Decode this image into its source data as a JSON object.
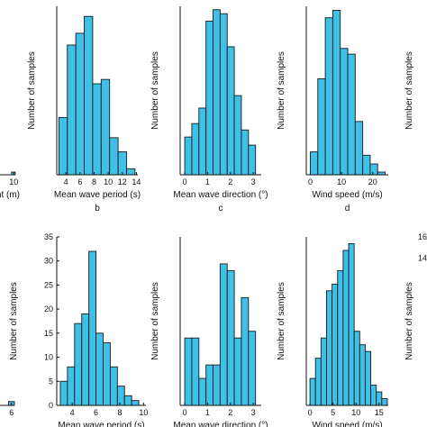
{
  "colors": {
    "bar_fill": "#3FC0E6",
    "bar_edge": "#1a1a1a",
    "axis": "#111111"
  },
  "chart_data": [
    {
      "type": "bar",
      "panel_letter": "",
      "xlabel": "ight (m)",
      "ylabel": "",
      "xlim": [
        0,
        10.5
      ],
      "ylim": [
        0,
        500
      ],
      "xticks": [
        {
          "value": 10,
          "label": "10"
        }
      ],
      "yticks": [],
      "bins": [
        {
          "x0": 9.3,
          "x1": 10.5,
          "value": 8
        }
      ]
    },
    {
      "type": "bar",
      "panel_letter": "b",
      "xlabel": "Mean wave period (s)",
      "ylabel": "Number of samples",
      "xlim": [
        2.7,
        14.2
      ],
      "ylim": [
        0,
        500
      ],
      "xticks": [
        {
          "value": 4,
          "label": "4"
        },
        {
          "value": 6,
          "label": "6"
        },
        {
          "value": 8,
          "label": "8"
        },
        {
          "value": 10,
          "label": "10"
        },
        {
          "value": 12,
          "label": "12"
        },
        {
          "value": 14,
          "label": "14"
        }
      ],
      "yticks": [
        {
          "value": 0,
          "label": ""
        }
      ],
      "bins": [
        {
          "x0": 3.0,
          "x1": 4.2,
          "value": 170
        },
        {
          "x0": 4.2,
          "x1": 5.4,
          "value": 385
        },
        {
          "x0": 5.4,
          "x1": 6.6,
          "value": 420
        },
        {
          "x0": 6.6,
          "x1": 7.8,
          "value": 470
        },
        {
          "x0": 7.8,
          "x1": 9.0,
          "value": 270
        },
        {
          "x0": 9.0,
          "x1": 10.2,
          "value": 283
        },
        {
          "x0": 10.2,
          "x1": 11.4,
          "value": 110
        },
        {
          "x0": 11.4,
          "x1": 12.6,
          "value": 68
        },
        {
          "x0": 12.6,
          "x1": 13.8,
          "value": 18
        }
      ]
    },
    {
      "type": "bar",
      "panel_letter": "c",
      "xlabel": "Mean wave direction (°)",
      "ylabel": "Number of samples",
      "xlim": [
        -0.2,
        3.35
      ],
      "ylim": [
        0,
        500
      ],
      "xticks": [
        {
          "value": 0,
          "label": "0"
        },
        {
          "value": 1,
          "label": "1"
        },
        {
          "value": 2,
          "label": "2"
        },
        {
          "value": 3,
          "label": "3"
        }
      ],
      "yticks": [
        {
          "value": 0,
          "label": ""
        }
      ],
      "bins": [
        {
          "x0": 0.0,
          "x1": 0.31,
          "value": 112
        },
        {
          "x0": 0.31,
          "x1": 0.62,
          "value": 152
        },
        {
          "x0": 0.62,
          "x1": 0.93,
          "value": 198
        },
        {
          "x0": 0.93,
          "x1": 1.24,
          "value": 456
        },
        {
          "x0": 1.24,
          "x1": 1.55,
          "value": 490
        },
        {
          "x0": 1.55,
          "x1": 1.86,
          "value": 478
        },
        {
          "x0": 1.86,
          "x1": 2.17,
          "value": 380
        },
        {
          "x0": 2.17,
          "x1": 2.48,
          "value": 235
        },
        {
          "x0": 2.48,
          "x1": 2.79,
          "value": 133
        },
        {
          "x0": 2.79,
          "x1": 3.1,
          "value": 88
        }
      ]
    },
    {
      "type": "bar",
      "panel_letter": "d",
      "xlabel": "Wind speed (m/s)",
      "ylabel": "Number of samples",
      "xlim": [
        -1.3,
        25
      ],
      "ylim": [
        0,
        500
      ],
      "xticks": [
        {
          "value": 0,
          "label": "0"
        },
        {
          "value": 10,
          "label": "10"
        },
        {
          "value": 20,
          "label": "20"
        }
      ],
      "yticks": [
        {
          "value": 0,
          "label": ""
        }
      ],
      "bins": [
        {
          "x0": 0.0,
          "x1": 2.4,
          "value": 68
        },
        {
          "x0": 2.4,
          "x1": 4.8,
          "value": 285
        },
        {
          "x0": 4.8,
          "x1": 7.2,
          "value": 466
        },
        {
          "x0": 7.2,
          "x1": 9.6,
          "value": 488
        },
        {
          "x0": 9.6,
          "x1": 12.0,
          "value": 375
        },
        {
          "x0": 12.0,
          "x1": 14.4,
          "value": 358
        },
        {
          "x0": 14.4,
          "x1": 16.8,
          "value": 158
        },
        {
          "x0": 16.8,
          "x1": 19.2,
          "value": 58
        },
        {
          "x0": 19.2,
          "x1": 21.6,
          "value": 32
        },
        {
          "x0": 21.6,
          "x1": 24.0,
          "value": 8
        }
      ]
    },
    {
      "type": "bar",
      "panel_letter": "",
      "xlabel": "",
      "ylabel": "",
      "xlim": [
        0,
        6.6
      ],
      "ylim": [
        0,
        35
      ],
      "xticks": [
        {
          "value": 6,
          "label": "6"
        }
      ],
      "yticks": [],
      "bins": [
        {
          "x0": 5.4,
          "x1": 6.6,
          "value": 0.8
        }
      ]
    },
    {
      "type": "bar",
      "panel_letter": "",
      "xlabel": "Mean wave period (s)",
      "ylabel": "Number of samples",
      "xlim": [
        2.7,
        10.2
      ],
      "ylim": [
        0,
        35
      ],
      "xticks": [
        {
          "value": 4,
          "label": "4"
        },
        {
          "value": 6,
          "label": "6"
        },
        {
          "value": 8,
          "label": "8"
        },
        {
          "value": 10,
          "label": "10"
        }
      ],
      "yticks": [
        {
          "value": 0,
          "label": "0"
        },
        {
          "value": 5,
          "label": "5"
        },
        {
          "value": 10,
          "label": "10"
        },
        {
          "value": 15,
          "label": "15"
        },
        {
          "value": 20,
          "label": "20"
        },
        {
          "value": 25,
          "label": "25"
        },
        {
          "value": 30,
          "label": "30"
        },
        {
          "value": 35,
          "label": "35"
        }
      ],
      "bins": [
        {
          "x0": 3.0,
          "x1": 3.6,
          "value": 5
        },
        {
          "x0": 3.6,
          "x1": 4.2,
          "value": 8
        },
        {
          "x0": 4.2,
          "x1": 4.8,
          "value": 17
        },
        {
          "x0": 4.8,
          "x1": 5.4,
          "value": 19
        },
        {
          "x0": 5.4,
          "x1": 6.0,
          "value": 32
        },
        {
          "x0": 6.0,
          "x1": 6.6,
          "value": 15
        },
        {
          "x0": 6.6,
          "x1": 7.2,
          "value": 13
        },
        {
          "x0": 7.2,
          "x1": 7.8,
          "value": 8
        },
        {
          "x0": 7.8,
          "x1": 8.4,
          "value": 4
        },
        {
          "x0": 8.4,
          "x1": 9.0,
          "value": 2
        },
        {
          "x0": 9.0,
          "x1": 9.6,
          "value": 1
        }
      ]
    },
    {
      "type": "bar",
      "panel_letter": "",
      "xlabel": "Mean wave direction (°)",
      "ylabel": "Number of samples",
      "xlim": [
        -0.2,
        3.35
      ],
      "ylim": [
        0,
        25
      ],
      "xticks": [
        {
          "value": 0,
          "label": "0"
        },
        {
          "value": 1,
          "label": "1"
        },
        {
          "value": 2,
          "label": "2"
        },
        {
          "value": 3,
          "label": "3"
        }
      ],
      "yticks": [
        {
          "value": 0,
          "label": ""
        }
      ],
      "bins": [
        {
          "x0": 0.0,
          "x1": 0.31,
          "value": 10
        },
        {
          "x0": 0.31,
          "x1": 0.62,
          "value": 10
        },
        {
          "x0": 0.62,
          "x1": 0.93,
          "value": 4
        },
        {
          "x0": 0.93,
          "x1": 1.24,
          "value": 6
        },
        {
          "x0": 1.24,
          "x1": 1.55,
          "value": 6
        },
        {
          "x0": 1.55,
          "x1": 1.86,
          "value": 21
        },
        {
          "x0": 1.86,
          "x1": 2.17,
          "value": 20
        },
        {
          "x0": 2.17,
          "x1": 2.48,
          "value": 10
        },
        {
          "x0": 2.48,
          "x1": 2.79,
          "value": 16
        },
        {
          "x0": 2.79,
          "x1": 3.1,
          "value": 11
        }
      ]
    },
    {
      "type": "bar",
      "panel_letter": "",
      "xlabel": "Wind speed (m/s)",
      "ylabel": "Number of samples",
      "xlim": [
        -0.8,
        17
      ],
      "ylim": [
        0,
        25
      ],
      "xticks": [
        {
          "value": 0,
          "label": "0"
        },
        {
          "value": 5,
          "label": "5"
        },
        {
          "value": 10,
          "label": "10"
        },
        {
          "value": 15,
          "label": "15"
        }
      ],
      "yticks": [
        {
          "value": 0,
          "label": ""
        }
      ],
      "bins": [
        {
          "x0": 0.0,
          "x1": 1.2,
          "value": 4
        },
        {
          "x0": 1.2,
          "x1": 2.4,
          "value": 7
        },
        {
          "x0": 2.4,
          "x1": 3.6,
          "value": 10
        },
        {
          "x0": 3.6,
          "x1": 4.8,
          "value": 17
        },
        {
          "x0": 4.8,
          "x1": 6.0,
          "value": 18
        },
        {
          "x0": 6.0,
          "x1": 7.2,
          "value": 20
        },
        {
          "x0": 7.2,
          "x1": 8.4,
          "value": 23
        },
        {
          "x0": 8.4,
          "x1": 9.6,
          "value": 24
        },
        {
          "x0": 9.6,
          "x1": 10.8,
          "value": 11
        },
        {
          "x0": 10.8,
          "x1": 12.0,
          "value": 9
        },
        {
          "x0": 12.0,
          "x1": 13.2,
          "value": 8
        },
        {
          "x0": 13.2,
          "x1": 14.4,
          "value": 3
        },
        {
          "x0": 14.4,
          "x1": 15.6,
          "value": 2
        },
        {
          "x0": 15.6,
          "x1": 16.8,
          "value": 1
        }
      ]
    },
    {
      "type": "bar",
      "panel_letter": "",
      "xlabel": "",
      "ylabel": "Number of samples",
      "xlim": [
        0,
        1
      ],
      "ylim": [
        0,
        16
      ],
      "xticks": [],
      "yticks": [
        {
          "value": 14,
          "label": "14"
        },
        {
          "value": 16,
          "label": "16"
        }
      ],
      "bins": []
    },
    {
      "type": "bar",
      "panel_letter": "",
      "xlabel": "",
      "ylabel": "Number of samples",
      "xlim": [
        0,
        1
      ],
      "ylim": [
        0,
        500
      ],
      "xticks": [],
      "yticks": [],
      "bins": []
    }
  ]
}
